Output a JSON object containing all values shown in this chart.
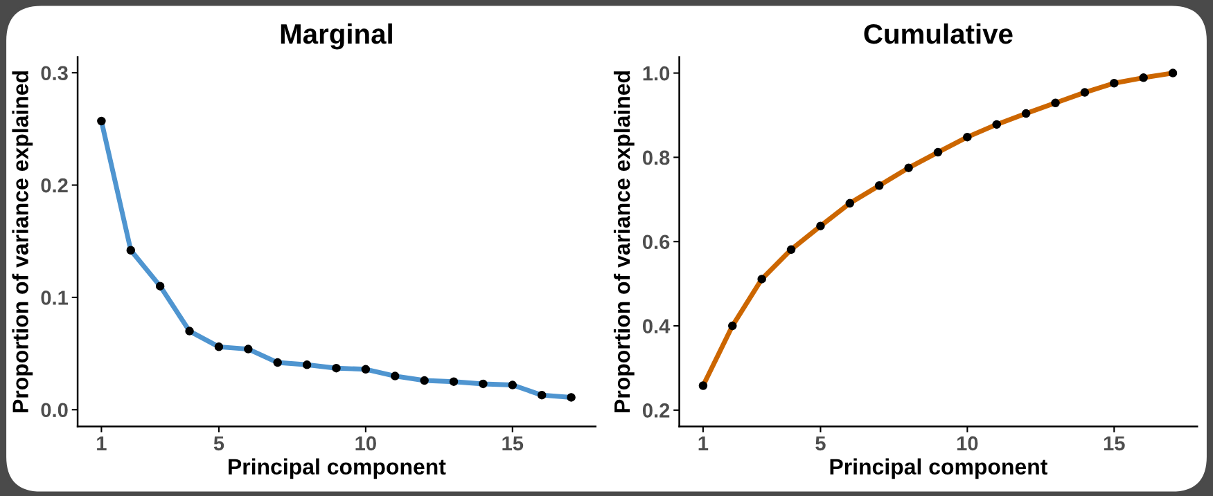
{
  "chart_data": [
    {
      "type": "line",
      "title": "Marginal",
      "xlabel": "Principal component",
      "ylabel": "Proportion of variance explained",
      "x": [
        1,
        2,
        3,
        4,
        5,
        6,
        7,
        8,
        9,
        10,
        11,
        12,
        13,
        14,
        15,
        16,
        17
      ],
      "series": [
        {
          "color": "#4f95d0",
          "values": [
            0.257,
            0.142,
            0.11,
            0.07,
            0.056,
            0.054,
            0.042,
            0.04,
            0.037,
            0.036,
            0.03,
            0.026,
            0.025,
            0.023,
            0.022,
            0.013,
            0.011
          ]
        }
      ],
      "xlim": [
        0.19,
        17.83
      ],
      "xticks": [
        1,
        5,
        10,
        15
      ],
      "ylim": [
        -0.015,
        0.314
      ],
      "yticks": [
        {
          "value": 0,
          "label": "0.0"
        },
        0.1,
        0.2,
        0.3
      ],
      "marker": "circle"
    },
    {
      "type": "line",
      "title": "Cumulative",
      "xlabel": "Principal component",
      "ylabel": "Proportion of variance explained",
      "x": [
        1,
        2,
        3,
        4,
        5,
        6,
        7,
        8,
        9,
        10,
        11,
        12,
        13,
        14,
        15,
        16,
        17
      ],
      "series": [
        {
          "color": "#cc6600",
          "values": [
            0.258,
            0.4,
            0.511,
            0.581,
            0.637,
            0.691,
            0.733,
            0.775,
            0.812,
            0.848,
            0.878,
            0.904,
            0.929,
            0.954,
            0.976,
            0.989,
            1.0
          ]
        }
      ],
      "xlim": [
        0.19,
        17.83
      ],
      "xticks": [
        1,
        5,
        10,
        15
      ],
      "ylim": [
        0.161,
        1.038
      ],
      "yticks": [
        0.2,
        0.4,
        0.6,
        0.8,
        {
          "value": 1,
          "label": "1.0"
        }
      ],
      "marker": "circle"
    }
  ]
}
